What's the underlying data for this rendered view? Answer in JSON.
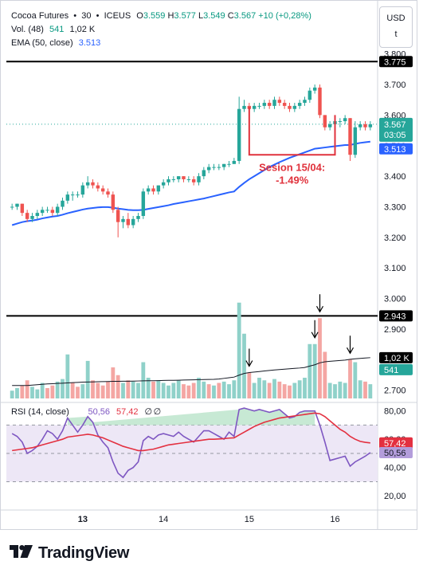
{
  "header": {
    "symbol": "Cocoa Futures",
    "interval": "30",
    "exchange": "ICEUS",
    "o_label": "O",
    "open": "3.559",
    "h_label": "H",
    "high": "3.577",
    "l_label": "L",
    "low": "3.549",
    "c_label": "C",
    "close": "3.567",
    "change": "+10 (+0,28%)",
    "vol_label": "Vol. (48)",
    "vol_value_1": "541",
    "vol_value_2": "1,02 K",
    "ema_label": "EMA (50, close)",
    "ema_value": "3.513",
    "rsi_label": "RSI (14, close)",
    "rsi_value_1": "50,56",
    "rsi_value_2": "57,42",
    "rsi_empty_1": "∅",
    "rsi_empty_2": "∅"
  },
  "currency_box": {
    "currency": "USD",
    "unit": "t"
  },
  "price_axis": {
    "ticks": [
      "3.800",
      "3.700",
      "3.600",
      "3.500",
      "3.400",
      "3.300",
      "3.200",
      "3.100",
      "3.000",
      "2.900",
      "2.800",
      "2.700"
    ],
    "tick_values": [
      3.8,
      3.7,
      3.6,
      3.5,
      3.4,
      3.3,
      3.2,
      3.1,
      3.0,
      2.9,
      2.8,
      2.7
    ],
    "last_price": "3.567",
    "countdown": "03:05",
    "ema_tag": "3.513",
    "resistance": "3.775",
    "support": "2.943",
    "vol_tag": "1,02 K",
    "vol_tag_2": "541"
  },
  "rsi_axis": {
    "ticks": [
      "80,00",
      "60,00",
      "40,00",
      "20,00"
    ],
    "tick_values": [
      80,
      60,
      40,
      20
    ],
    "tag_1": "57,42",
    "tag_2": "50,56"
  },
  "time_axis": {
    "labels": [
      "13",
      "14",
      "15",
      "16"
    ]
  },
  "annotation": {
    "line1": "Sesion 15/04:",
    "line2": "-1.49%"
  },
  "colors": {
    "up": "#26a69a",
    "down": "#ef5350",
    "ema": "#2962ff",
    "rsi": "#7e57c2",
    "rsi_ma": "#e33040",
    "annotation": "#e0323c",
    "vol_up": "#8fd1c9",
    "vol_down": "#f4a6a3"
  },
  "brand": {
    "name": "TradingView"
  },
  "chart_data": {
    "type": "candlestick",
    "resistance": 3.775,
    "support": 2.943,
    "candles": [
      [
        3.3,
        3.31,
        3.29,
        3.3
      ],
      [
        3.3,
        3.31,
        3.29,
        3.31
      ],
      [
        3.31,
        3.31,
        3.27,
        3.28
      ],
      [
        3.28,
        3.29,
        3.25,
        3.26
      ],
      [
        3.26,
        3.28,
        3.25,
        3.27
      ],
      [
        3.27,
        3.29,
        3.26,
        3.28
      ],
      [
        3.28,
        3.3,
        3.27,
        3.29
      ],
      [
        3.29,
        3.3,
        3.28,
        3.29
      ],
      [
        3.29,
        3.3,
        3.27,
        3.28
      ],
      [
        3.28,
        3.31,
        3.27,
        3.3
      ],
      [
        3.3,
        3.33,
        3.29,
        3.32
      ],
      [
        3.32,
        3.35,
        3.31,
        3.34
      ],
      [
        3.34,
        3.35,
        3.32,
        3.34
      ],
      [
        3.34,
        3.35,
        3.33,
        3.34
      ],
      [
        3.34,
        3.38,
        3.33,
        3.37
      ],
      [
        3.37,
        3.4,
        3.36,
        3.38
      ],
      [
        3.38,
        3.39,
        3.36,
        3.37
      ],
      [
        3.37,
        3.38,
        3.35,
        3.36
      ],
      [
        3.36,
        3.37,
        3.34,
        3.35
      ],
      [
        3.35,
        3.36,
        3.33,
        3.34
      ],
      [
        3.34,
        3.35,
        3.28,
        3.29
      ],
      [
        3.29,
        3.3,
        3.2,
        3.25
      ],
      [
        3.25,
        3.27,
        3.23,
        3.26
      ],
      [
        3.26,
        3.28,
        3.23,
        3.24
      ],
      [
        3.24,
        3.27,
        3.23,
        3.26
      ],
      [
        3.26,
        3.28,
        3.25,
        3.27
      ],
      [
        3.27,
        3.36,
        3.26,
        3.35
      ],
      [
        3.35,
        3.37,
        3.34,
        3.36
      ],
      [
        3.36,
        3.37,
        3.34,
        3.35
      ],
      [
        3.35,
        3.37,
        3.34,
        3.37
      ],
      [
        3.37,
        3.39,
        3.36,
        3.38
      ],
      [
        3.38,
        3.4,
        3.37,
        3.39
      ],
      [
        3.39,
        3.4,
        3.38,
        3.39
      ],
      [
        3.39,
        3.4,
        3.38,
        3.4
      ],
      [
        3.4,
        3.4,
        3.38,
        3.39
      ],
      [
        3.39,
        3.4,
        3.38,
        3.39
      ],
      [
        3.39,
        3.4,
        3.37,
        3.38
      ],
      [
        3.38,
        3.41,
        3.37,
        3.4
      ],
      [
        3.4,
        3.43,
        3.39,
        3.42
      ],
      [
        3.42,
        3.44,
        3.41,
        3.43
      ],
      [
        3.43,
        3.44,
        3.42,
        3.43
      ],
      [
        3.43,
        3.44,
        3.42,
        3.43
      ],
      [
        3.43,
        3.44,
        3.42,
        3.44
      ],
      [
        3.44,
        3.45,
        3.43,
        3.44
      ],
      [
        3.44,
        3.46,
        3.44,
        3.45
      ],
      [
        3.45,
        3.66,
        3.44,
        3.62
      ],
      [
        3.62,
        3.65,
        3.61,
        3.63
      ],
      [
        3.63,
        3.64,
        3.61,
        3.62
      ],
      [
        3.62,
        3.64,
        3.61,
        3.63
      ],
      [
        3.63,
        3.64,
        3.62,
        3.63
      ],
      [
        3.63,
        3.65,
        3.62,
        3.64
      ],
      [
        3.64,
        3.65,
        3.62,
        3.63
      ],
      [
        3.63,
        3.66,
        3.62,
        3.65
      ],
      [
        3.65,
        3.66,
        3.63,
        3.64
      ],
      [
        3.64,
        3.65,
        3.62,
        3.63
      ],
      [
        3.63,
        3.64,
        3.61,
        3.62
      ],
      [
        3.62,
        3.64,
        3.61,
        3.63
      ],
      [
        3.63,
        3.65,
        3.62,
        3.64
      ],
      [
        3.64,
        3.66,
        3.63,
        3.65
      ],
      [
        3.65,
        3.69,
        3.64,
        3.68
      ],
      [
        3.68,
        3.7,
        3.67,
        3.69
      ],
      [
        3.69,
        3.7,
        3.59,
        3.6
      ],
      [
        3.6,
        3.6,
        3.55,
        3.56
      ],
      [
        3.56,
        3.58,
        3.55,
        3.57
      ],
      [
        3.57,
        3.59,
        3.56,
        3.58
      ],
      [
        3.58,
        3.59,
        3.56,
        3.58
      ],
      [
        3.58,
        3.6,
        3.57,
        3.59
      ],
      [
        3.59,
        3.59,
        3.45,
        3.47
      ],
      [
        3.47,
        3.58,
        3.46,
        3.56
      ],
      [
        3.56,
        3.58,
        3.55,
        3.57
      ],
      [
        3.57,
        3.58,
        3.55,
        3.56
      ],
      [
        3.56,
        3.58,
        3.55,
        3.57
      ]
    ],
    "ema": [
      3.24,
      3.245,
      3.25,
      3.253,
      3.255,
      3.258,
      3.262,
      3.265,
      3.268,
      3.27,
      3.274,
      3.279,
      3.283,
      3.287,
      3.291,
      3.294,
      3.296,
      3.298,
      3.299,
      3.299,
      3.297,
      3.294,
      3.292,
      3.29,
      3.289,
      3.289,
      3.29,
      3.293,
      3.296,
      3.299,
      3.302,
      3.305,
      3.309,
      3.312,
      3.315,
      3.318,
      3.321,
      3.324,
      3.327,
      3.331,
      3.335,
      3.339,
      3.343,
      3.347,
      3.35,
      3.365,
      3.378,
      3.39,
      3.4,
      3.41,
      3.42,
      3.43,
      3.438,
      3.446,
      3.453,
      3.46,
      3.466,
      3.472,
      3.478,
      3.484,
      3.49,
      3.492,
      3.494,
      3.496,
      3.498,
      3.5,
      3.502,
      3.502,
      3.506,
      3.509,
      3.511,
      3.513
    ],
    "volume": [
      [
        6,
        1
      ],
      [
        8,
        1
      ],
      [
        10,
        0
      ],
      [
        14,
        0
      ],
      [
        9,
        1
      ],
      [
        7,
        1
      ],
      [
        12,
        1
      ],
      [
        8,
        0
      ],
      [
        10,
        0
      ],
      [
        13,
        1
      ],
      [
        15,
        1
      ],
      [
        34,
        1
      ],
      [
        12,
        0
      ],
      [
        9,
        0
      ],
      [
        11,
        1
      ],
      [
        29,
        1
      ],
      [
        14,
        0
      ],
      [
        12,
        0
      ],
      [
        10,
        0
      ],
      [
        13,
        0
      ],
      [
        24,
        0
      ],
      [
        18,
        0
      ],
      [
        12,
        1
      ],
      [
        14,
        0
      ],
      [
        13,
        1
      ],
      [
        12,
        1
      ],
      [
        28,
        1
      ],
      [
        16,
        1
      ],
      [
        13,
        0
      ],
      [
        14,
        1
      ],
      [
        12,
        1
      ],
      [
        10,
        1
      ],
      [
        12,
        1
      ],
      [
        14,
        1
      ],
      [
        11,
        0
      ],
      [
        10,
        0
      ],
      [
        12,
        0
      ],
      [
        16,
        1
      ],
      [
        13,
        1
      ],
      [
        11,
        0
      ],
      [
        10,
        1
      ],
      [
        12,
        0
      ],
      [
        13,
        1
      ],
      [
        11,
        1
      ],
      [
        14,
        1
      ],
      [
        74,
        1
      ],
      [
        50,
        1
      ],
      [
        20,
        0
      ],
      [
        12,
        1
      ],
      [
        16,
        1
      ],
      [
        14,
        1
      ],
      [
        12,
        0
      ],
      [
        15,
        1
      ],
      [
        13,
        0
      ],
      [
        11,
        0
      ],
      [
        10,
        0
      ],
      [
        12,
        1
      ],
      [
        14,
        1
      ],
      [
        16,
        1
      ],
      [
        42,
        1
      ],
      [
        42,
        1
      ],
      [
        62,
        0
      ],
      [
        36,
        0
      ],
      [
        12,
        1
      ],
      [
        11,
        1
      ],
      [
        13,
        1
      ],
      [
        12,
        1
      ],
      [
        30,
        0
      ],
      [
        28,
        1
      ],
      [
        14,
        1
      ],
      [
        13,
        0
      ],
      [
        11,
        1
      ]
    ],
    "volume_ma": [
      10,
      10,
      10,
      10,
      10.3,
      10.6,
      10.9,
      11.2,
      11.4,
      11.6,
      11.8,
      12,
      12.2,
      12.4,
      12.6,
      12.7,
      12.8,
      12.9,
      13,
      13.1,
      13.2,
      13.2,
      13.3,
      13.3,
      13.4,
      13.5,
      13.6,
      13.7,
      13.7,
      13.8,
      13.9,
      14,
      14,
      14.1,
      14.2,
      14.3,
      14.4,
      14.5,
      14.6,
      14.7,
      14.8,
      15,
      15.5,
      16,
      16.5,
      18,
      19.3,
      20,
      20.4,
      20.8,
      21.2,
      21.6,
      22,
      22.3,
      22.6,
      22.9,
      23.2,
      23.5,
      23.9,
      25,
      26,
      27.5,
      28.3,
      28.7,
      29,
      29.3,
      29.6,
      30.2,
      30.6,
      30.9,
      31.2,
      31.5
    ],
    "volume_max": 80,
    "rsi": [
      64,
      62,
      58,
      50,
      52,
      55,
      60,
      66,
      64,
      60,
      66,
      75,
      70,
      65,
      70,
      76,
      72,
      63,
      58,
      54,
      44,
      36,
      33,
      38,
      40,
      44,
      59,
      62,
      60,
      63,
      64,
      63,
      62,
      65,
      62,
      60,
      58,
      62,
      66,
      66,
      64,
      62,
      60,
      65,
      62,
      81,
      82,
      81,
      80,
      81,
      80,
      79,
      80,
      81,
      78,
      75,
      76,
      79,
      80,
      80,
      80,
      70,
      58,
      45,
      46,
      47,
      48,
      41,
      44,
      46,
      48,
      50.56
    ],
    "rsi_ma": [
      52,
      52.5,
      53,
      53.5,
      54,
      55,
      56,
      57,
      58,
      59,
      60,
      61.5,
      62,
      62.5,
      63,
      63.5,
      63,
      62,
      61,
      59.5,
      58,
      56.5,
      55,
      54,
      53,
      52,
      52,
      52.5,
      53,
      54,
      55,
      56,
      56.5,
      57,
      57.5,
      58,
      58.5,
      59,
      59.5,
      60,
      60,
      60.2,
      60.4,
      60.8,
      61,
      63,
      65,
      67,
      69,
      70.5,
      72,
      73,
      74,
      75,
      75.5,
      76,
      76.5,
      77,
      77.5,
      78,
      78.5,
      78,
      76,
      73,
      70,
      67,
      65,
      62,
      60,
      58.5,
      57.8,
      57.42
    ],
    "rsi_levels": [
      70,
      50,
      30
    ],
    "rsi_range": [
      10,
      86
    ],
    "price_range": [
      2.66,
      3.82
    ],
    "x_labels": [
      "13",
      "14",
      "15",
      "16"
    ],
    "x_label_index": [
      14,
      30,
      47,
      64
    ],
    "annotation_range_index": [
      47,
      64
    ],
    "annotation_low": 3.47,
    "annotation_high": 3.6,
    "volume_arrows_index": [
      47,
      60,
      61,
      67
    ]
  }
}
